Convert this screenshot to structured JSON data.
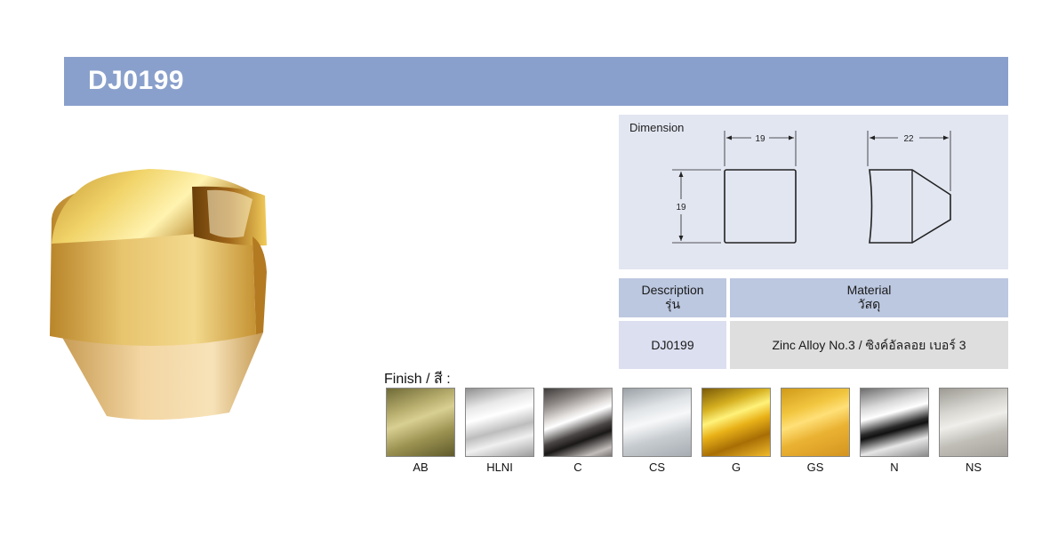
{
  "header": {
    "model_code": "DJ0199",
    "banner_color": "#8aa0cc"
  },
  "dimension": {
    "title": "Dimension",
    "front_width": "19",
    "front_height": "19",
    "side_depth": "22"
  },
  "table": {
    "description_header": "Description",
    "description_header_th": "รุ่น",
    "material_header": "Material",
    "material_header_th": "วัสดุ",
    "description_value": "DJ0199",
    "material_value": "Zinc Alloy No.3 / ซิงค์อัลลอย เบอร์ 3"
  },
  "finish": {
    "label": "Finish / สี :",
    "swatches": [
      {
        "code": "AB"
      },
      {
        "code": "HLNI"
      },
      {
        "code": "C"
      },
      {
        "code": "CS"
      },
      {
        "code": "G"
      },
      {
        "code": "GS"
      },
      {
        "code": "N"
      },
      {
        "code": "NS"
      }
    ]
  }
}
